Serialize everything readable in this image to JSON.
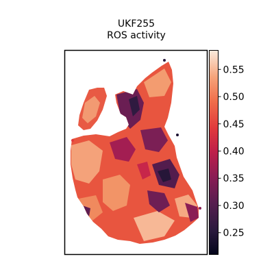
{
  "chart_data": {
    "type": "heatmap",
    "subtype": "spatial-transcriptomics-spot-map",
    "title": "UKF255",
    "subtitle": "ROS activity",
    "xlabel": "",
    "ylabel": "",
    "grid": false,
    "colormap": "rocket",
    "colorbar": {
      "location": "right",
      "range": [
        0.21,
        0.585
      ],
      "ticks": [
        0.25,
        0.3,
        0.35,
        0.4,
        0.45,
        0.5,
        0.55
      ],
      "tick_labels": [
        "0.25",
        "0.30",
        "0.35",
        "0.40",
        "0.45",
        "0.50",
        "0.55"
      ]
    }
  }
}
